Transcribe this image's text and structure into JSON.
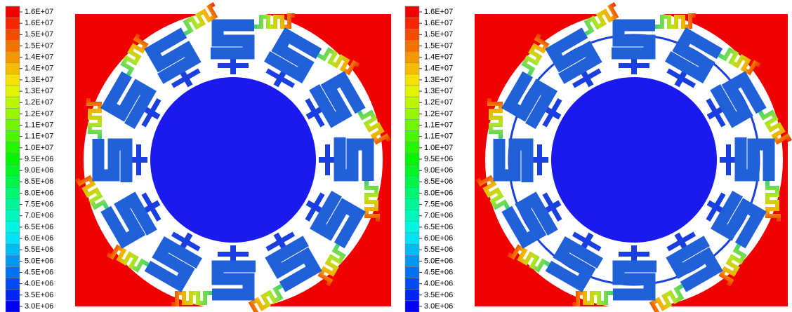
{
  "panels": [
    {
      "colorbar": {
        "labels": [
          "1.6E+07",
          "1.6E+07",
          "1.5E+07",
          "1.5E+07",
          "1.4E+07",
          "1.4E+07",
          "1.3E+07",
          "1.3E+07",
          "1.2E+07",
          "1.2E+07",
          "1.1E+07",
          "1.1E+07",
          "1.0E+07",
          "9.5E+06",
          "9.0E+06",
          "8.5E+06",
          "8.0E+06",
          "7.5E+06",
          "7.0E+06",
          "6.5E+06",
          "6.0E+06",
          "5.5E+06",
          "5.0E+06",
          "4.5E+06",
          "4.0E+06",
          "3.5E+06",
          "3.0E+06"
        ]
      }
    },
    {
      "colorbar": {
        "labels": [
          "1.6E+07",
          "1.6E+07",
          "1.5E+07",
          "1.5E+07",
          "1.4E+07",
          "1.4E+07",
          "1.3E+07",
          "1.3E+07",
          "1.2E+07",
          "1.2E+07",
          "1.1E+07",
          "1.1E+07",
          "1.0E+07",
          "9.5E+06",
          "9.0E+06",
          "8.5E+06",
          "8.0E+06",
          "7.5E+06",
          "7.0E+06",
          "6.5E+06",
          "6.0E+06",
          "5.5E+06",
          "5.0E+06",
          "4.5E+06",
          "4.0E+06",
          "3.5E+06",
          "3.0E+06"
        ]
      }
    }
  ]
}
